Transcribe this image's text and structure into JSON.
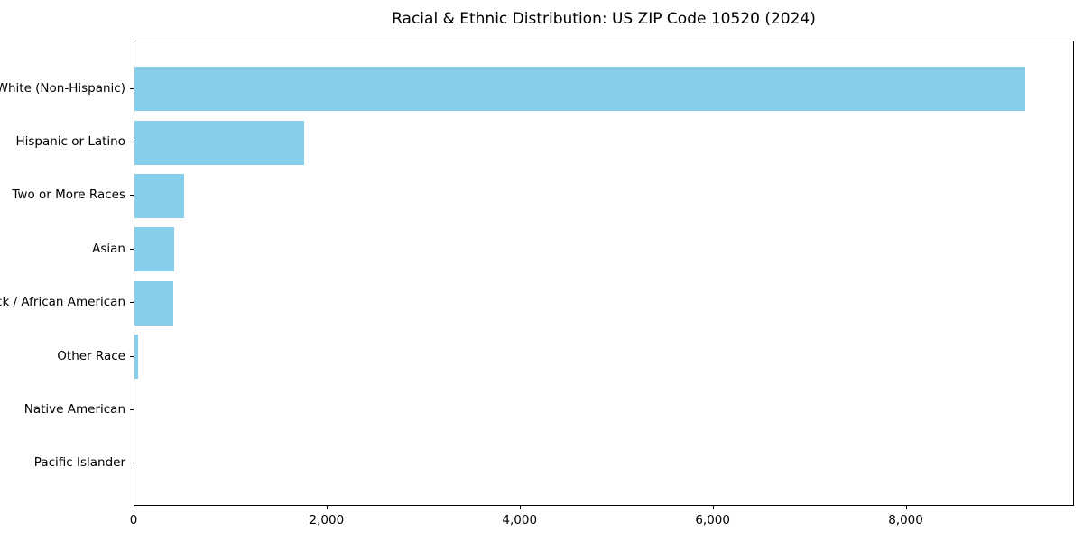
{
  "chart_data": {
    "type": "bar",
    "orientation": "horizontal",
    "title": "Racial & Ethnic Distribution: US ZIP Code 10520 (2024)",
    "categories": [
      "White (Non-Hispanic)",
      "Hispanic or Latino",
      "Two or More Races",
      "Asian",
      "Black / African American",
      "Other Race",
      "Native American",
      "Pacific Islander"
    ],
    "values": [
      9230,
      1755,
      515,
      415,
      405,
      40,
      0,
      0
    ],
    "xlabel": "",
    "ylabel": "",
    "xlim": [
      0,
      9725
    ],
    "x_ticks": [
      0,
      2000,
      4000,
      6000,
      8000
    ],
    "x_tick_labels": [
      "0",
      "2,000",
      "4,000",
      "6,000",
      "8,000"
    ],
    "bar_color": "#87CEEB",
    "axis_color": "#000000",
    "grid": false,
    "legend_position": "none"
  }
}
